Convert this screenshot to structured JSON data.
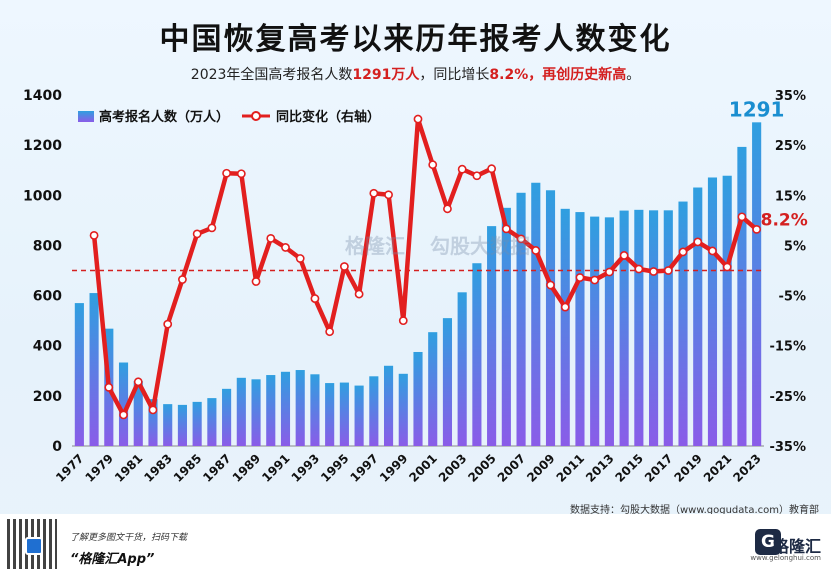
{
  "header": {
    "title": "中国恢复高考以来历年报考人数变化",
    "subtitle_prefix": "2023年全国高考报名人数",
    "subtitle_value": "1291万人",
    "subtitle_mid": "，同比增长",
    "subtitle_pct": "8.2%，再创历史新高",
    "subtitle_suffix": "。"
  },
  "watermark": {
    "left": "格隆汇",
    "right": "勾股大数据"
  },
  "source": "数据支持：勾股大数据（www.gogudata.com）教育部",
  "footer": {
    "small_text": "了解更多图文干货，扫码下载",
    "app_text": "“格隆汇App”",
    "brand_name": "格隆汇",
    "brand_url": "www.gelonghui.com",
    "logo_letter": "G"
  },
  "colors": {
    "bar_top": "#2f9fe0",
    "bar_bottom": "#8a5ce8",
    "line": "#e21f1f",
    "marker_fill": "#ffffff",
    "ref_line": "#d42020",
    "label_bar": "#1a8ed0",
    "label_line": "#d42020"
  },
  "chart_data": {
    "type": "bar",
    "x": [
      1977,
      1978,
      1979,
      1980,
      1981,
      1982,
      1983,
      1984,
      1985,
      1986,
      1987,
      1988,
      1989,
      1990,
      1991,
      1992,
      1993,
      1994,
      1995,
      1996,
      1997,
      1998,
      1999,
      2000,
      2001,
      2002,
      2003,
      2004,
      2005,
      2006,
      2007,
      2008,
      2009,
      2010,
      2011,
      2012,
      2013,
      2014,
      2015,
      2016,
      2017,
      2018,
      2019,
      2020,
      2021,
      2022,
      2023
    ],
    "x_ticks": [
      "1977",
      "1979",
      "1981",
      "1983",
      "1985",
      "1987",
      "1989",
      "1991",
      "1993",
      "1995",
      "1997",
      "1999",
      "2001",
      "2003",
      "2005",
      "2007",
      "2009",
      "2011",
      "2013",
      "2015",
      "2017",
      "2019",
      "2021",
      "2023"
    ],
    "series": [
      {
        "name": "高考报名人数（万人）",
        "axis": "left",
        "type": "bar",
        "values": [
          570,
          610,
          468,
          333,
          259,
          187,
          167,
          164,
          176,
          191,
          228,
          272,
          266,
          283,
          296,
          303,
          286,
          251,
          253,
          241,
          278,
          320,
          288,
          375,
          454,
          510,
          613,
          729,
          877,
          950,
          1010,
          1050,
          1020,
          946,
          933,
          915,
          912,
          939,
          942,
          940,
          940,
          975,
          1031,
          1071,
          1078,
          1193,
          1291
        ]
      },
      {
        "name": "同比变化（右轴）",
        "axis": "right",
        "type": "line",
        "values": [
          null,
          7.0,
          -23.3,
          -28.8,
          -22.2,
          -27.8,
          -10.7,
          -1.8,
          7.3,
          8.5,
          19.4,
          19.3,
          -2.2,
          6.4,
          4.6,
          2.4,
          -5.6,
          -12.2,
          0.8,
          -4.7,
          15.4,
          15.1,
          -10.0,
          30.2,
          21.1,
          12.3,
          20.2,
          18.9,
          20.3,
          8.3,
          6.3,
          4.0,
          -2.9,
          -7.3,
          -1.4,
          -1.9,
          -0.3,
          3.0,
          0.3,
          -0.2,
          0.0,
          3.7,
          5.7,
          3.9,
          0.7,
          10.7,
          8.2
        ]
      }
    ],
    "left_axis": {
      "ylim": [
        0,
        1400
      ],
      "ticks": [
        "0",
        "200",
        "400",
        "600",
        "800",
        "1000",
        "1200",
        "1400"
      ]
    },
    "right_axis": {
      "ylim": [
        -35,
        35
      ],
      "ticks": [
        "-35%",
        "-25%",
        "-15%",
        "-5%",
        "5%",
        "15%",
        "25%",
        "35%"
      ]
    },
    "reference_line": {
      "axis": "right",
      "value": 0,
      "style": "dashed"
    },
    "annotations": [
      {
        "text": "1291",
        "series": 0,
        "year": 2023
      },
      {
        "text": "8.2%",
        "series": 1,
        "year": 2023
      }
    ],
    "legend": {
      "position": "top-left"
    }
  }
}
